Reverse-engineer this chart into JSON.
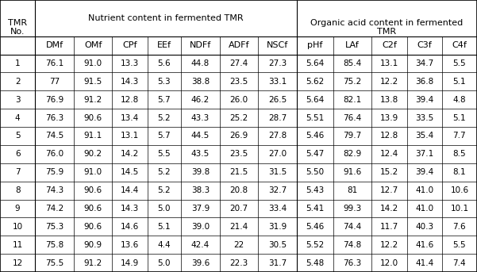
{
  "rows": [
    [
      "1",
      "76.1",
      "91.0",
      "13.3",
      "5.6",
      "44.8",
      "27.4",
      "27.3",
      "5.64",
      "85.4",
      "13.1",
      "34.7",
      "5.5"
    ],
    [
      "2",
      "77",
      "91.5",
      "14.3",
      "5.3",
      "38.8",
      "23.5",
      "33.1",
      "5.62",
      "75.2",
      "12.2",
      "36.8",
      "5.1"
    ],
    [
      "3",
      "76.9",
      "91.2",
      "12.8",
      "5.7",
      "46.2",
      "26.0",
      "26.5",
      "5.64",
      "82.1",
      "13.8",
      "39.4",
      "4.8"
    ],
    [
      "4",
      "76.3",
      "90.6",
      "13.4",
      "5.2",
      "43.3",
      "25.2",
      "28.7",
      "5.51",
      "76.4",
      "13.9",
      "33.5",
      "5.1"
    ],
    [
      "5",
      "74.5",
      "91.1",
      "13.1",
      "5.7",
      "44.5",
      "26.9",
      "27.8",
      "5.46",
      "79.7",
      "12.8",
      "35.4",
      "7.7"
    ],
    [
      "6",
      "76.0",
      "90.2",
      "14.2",
      "5.5",
      "43.5",
      "23.5",
      "27.0",
      "5.47",
      "82.9",
      "12.4",
      "37.1",
      "8.5"
    ],
    [
      "7",
      "75.9",
      "91.0",
      "14.5",
      "5.2",
      "39.8",
      "21.5",
      "31.5",
      "5.50",
      "91.6",
      "15.2",
      "39.4",
      "8.1"
    ],
    [
      "8",
      "74.3",
      "90.6",
      "14.4",
      "5.2",
      "38.3",
      "20.8",
      "32.7",
      "5.43",
      "81",
      "12.7",
      "41.0",
      "10.6"
    ],
    [
      "9",
      "74.2",
      "90.6",
      "14.3",
      "5.0",
      "37.9",
      "20.7",
      "33.4",
      "5.41",
      "99.3",
      "14.2",
      "41.0",
      "10.1"
    ],
    [
      "10",
      "75.3",
      "90.6",
      "14.6",
      "5.1",
      "39.0",
      "21.4",
      "31.9",
      "5.46",
      "74.4",
      "11.7",
      "40.3",
      "7.6"
    ],
    [
      "11",
      "75.8",
      "90.9",
      "13.6",
      "4.4",
      "42.4",
      "22",
      "30.5",
      "5.52",
      "74.8",
      "12.2",
      "41.6",
      "5.5"
    ],
    [
      "12",
      "75.5",
      "91.2",
      "14.9",
      "5.0",
      "39.6",
      "22.3",
      "31.7",
      "5.48",
      "76.3",
      "12.0",
      "41.4",
      "7.4"
    ]
  ],
  "nutrient_header": "Nutrient content in fermented TMR",
  "organic_header": "Organic acid content in fermented\nTMR",
  "tmr_no_label": "TMR\nNo.",
  "sub_headers": [
    "DMf",
    "OMf",
    "CPf",
    "EEf",
    "NDFf",
    "ADFf",
    "NSCf",
    "pHf",
    "LAf",
    "C2f",
    "C3f",
    "C4f"
  ],
  "bg_color": "#ffffff",
  "text_color": "#000000",
  "line_color": "#000000",
  "font_size": 7.5,
  "header_font_size": 8.0,
  "col_widths_raw": [
    5.0,
    5.5,
    5.5,
    5.0,
    4.8,
    5.5,
    5.5,
    5.5,
    5.2,
    5.5,
    5.0,
    5.0,
    5.0
  ]
}
